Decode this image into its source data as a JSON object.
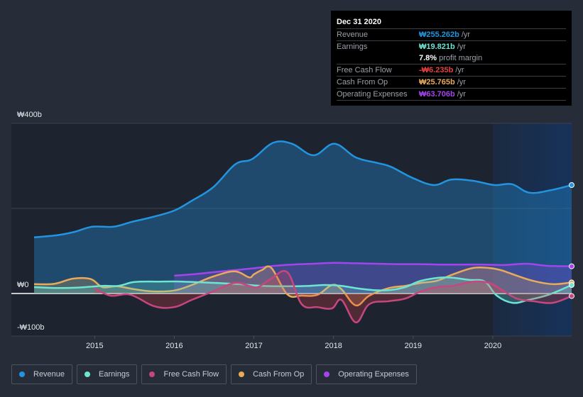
{
  "tooltip": {
    "date": "Dec 31 2020",
    "rows": [
      {
        "label": "Revenue",
        "value": "₩255.262b",
        "unit": "/yr",
        "color": "#2394df"
      },
      {
        "label": "Earnings",
        "value": "₩19.821b",
        "unit": "/yr",
        "color": "#6ce5d1"
      },
      {
        "label": "",
        "value": "7.8%",
        "unit": "profit margin",
        "color": "#ffffff"
      },
      {
        "label": "Free Cash Flow",
        "value": "-₩6.235b",
        "unit": "/yr",
        "color": "#e64141"
      },
      {
        "label": "Cash From Op",
        "value": "₩25.765b",
        "unit": "/yr",
        "color": "#e9ab5a"
      },
      {
        "label": "Operating Expenses",
        "value": "₩63.706b",
        "unit": "/yr",
        "color": "#a444ec"
      }
    ]
  },
  "legend": [
    {
      "label": "Revenue",
      "color": "#2394df"
    },
    {
      "label": "Earnings",
      "color": "#6ce5d1"
    },
    {
      "label": "Free Cash Flow",
      "color": "#c8467f"
    },
    {
      "label": "Cash From Op",
      "color": "#e9ab5a"
    },
    {
      "label": "Operating Expenses",
      "color": "#a444ec"
    }
  ],
  "chart_data": {
    "type": "area",
    "title": "",
    "xlabel": "",
    "ylabel": "",
    "currency": "₩",
    "ylim": [
      -100,
      400
    ],
    "yticks": [
      {
        "value": 400,
        "label": "₩400b"
      },
      {
        "value": 0,
        "label": "₩0"
      },
      {
        "value": -100,
        "label": "-₩100b"
      }
    ],
    "gridlines": [
      400,
      200,
      0,
      -100
    ],
    "xlim": [
      2014.24,
      2020.99
    ],
    "xticks": [
      {
        "value": 2015,
        "label": "2015"
      },
      {
        "value": 2016,
        "label": "2016"
      },
      {
        "value": 2017,
        "label": "2017"
      },
      {
        "value": 2018,
        "label": "2018"
      },
      {
        "value": 2019,
        "label": "2019"
      },
      {
        "value": 2020,
        "label": "2020"
      }
    ],
    "highlight_from": 2020,
    "series": [
      {
        "name": "Revenue",
        "color": "#2394df",
        "fill": "#2394df",
        "x": [
          2014.24,
          2014.53,
          2014.75,
          2014.97,
          2015.24,
          2015.46,
          2015.73,
          2016.0,
          2016.22,
          2016.49,
          2016.76,
          2016.94,
          2017.03,
          2017.25,
          2017.48,
          2017.75,
          2018.01,
          2018.28,
          2018.55,
          2018.72,
          2018.99,
          2019.26,
          2019.48,
          2019.75,
          2020.02,
          2020.24,
          2020.46,
          2020.73,
          2020.99
        ],
        "values": [
          132,
          137,
          145,
          157,
          157,
          168,
          180,
          195,
          218,
          250,
          303,
          313,
          323,
          355,
          352,
          325,
          352,
          320,
          307,
          298,
          272,
          255,
          268,
          265,
          255,
          257,
          237,
          243,
          255
        ]
      },
      {
        "name": "Operating Expenses",
        "color": "#a444ec",
        "fill": "#a444ec",
        "x": [
          2016.0,
          2016.22,
          2016.49,
          2016.76,
          2017.03,
          2017.25,
          2017.48,
          2017.75,
          2018.01,
          2018.28,
          2018.55,
          2018.82,
          2019.08,
          2019.35,
          2019.62,
          2019.89,
          2020.15,
          2020.42,
          2020.69,
          2020.99
        ],
        "values": [
          42,
          45,
          50,
          55,
          60,
          65,
          68,
          70,
          72,
          71,
          70,
          69,
          69,
          68,
          68,
          68,
          67,
          70,
          65,
          64
        ]
      },
      {
        "name": "Cash From Op",
        "color": "#e9ab5a",
        "fill": "#e9ab5a",
        "x": [
          2014.24,
          2014.5,
          2014.73,
          2014.95,
          2015.1,
          2015.28,
          2015.5,
          2015.73,
          2016.0,
          2016.22,
          2016.49,
          2016.76,
          2016.94,
          2017.0,
          2017.1,
          2017.22,
          2017.42,
          2017.6,
          2017.8,
          2017.98,
          2018.1,
          2018.28,
          2018.45,
          2018.7,
          2018.9,
          2019.1,
          2019.3,
          2019.5,
          2019.75,
          2019.95,
          2020.1,
          2020.3,
          2020.5,
          2020.75,
          2020.99
        ],
        "values": [
          22,
          23,
          35,
          34,
          15,
          17,
          10,
          5,
          7,
          20,
          40,
          52,
          38,
          45,
          55,
          60,
          -2,
          -5,
          -3,
          20,
          10,
          -28,
          -5,
          13,
          18,
          25,
          30,
          45,
          60,
          60,
          55,
          42,
          30,
          22,
          26
        ]
      },
      {
        "name": "Earnings",
        "color": "#6ce5d1",
        "fill": "#6ce5d1",
        "x": [
          2014.24,
          2014.5,
          2014.8,
          2015.1,
          2015.3,
          2015.5,
          2015.8,
          2016.1,
          2016.5,
          2016.8,
          2017.1,
          2017.4,
          2017.7,
          2017.9,
          2018.1,
          2018.3,
          2018.5,
          2018.7,
          2018.9,
          2019.1,
          2019.4,
          2019.7,
          2019.9,
          2020.05,
          2020.25,
          2020.45,
          2020.7,
          2020.99
        ],
        "values": [
          15,
          13,
          14,
          18,
          18,
          27,
          28,
          28,
          25,
          22,
          18,
          17,
          18,
          20,
          18,
          12,
          8,
          8,
          15,
          30,
          38,
          32,
          28,
          -5,
          -22,
          -15,
          -3,
          20
        ]
      },
      {
        "name": "Free Cash Flow",
        "color": "#c8467f",
        "fill": "#e64141",
        "x": [
          2015.0,
          2015.2,
          2015.45,
          2015.75,
          2016.0,
          2016.22,
          2016.49,
          2016.76,
          2016.94,
          2017.05,
          2017.22,
          2017.42,
          2017.6,
          2017.8,
          2017.98,
          2018.1,
          2018.28,
          2018.45,
          2018.7,
          2018.9,
          2019.1,
          2019.3,
          2019.5,
          2019.75,
          2019.95,
          2020.1,
          2020.3,
          2020.5,
          2020.75,
          2020.99
        ],
        "values": [
          12,
          -5,
          -3,
          -30,
          -32,
          -15,
          5,
          25,
          18,
          15,
          35,
          50,
          -25,
          -32,
          -35,
          -15,
          -68,
          -25,
          -18,
          -12,
          5,
          15,
          18,
          28,
          25,
          10,
          -12,
          -18,
          -22,
          -6
        ]
      }
    ]
  }
}
